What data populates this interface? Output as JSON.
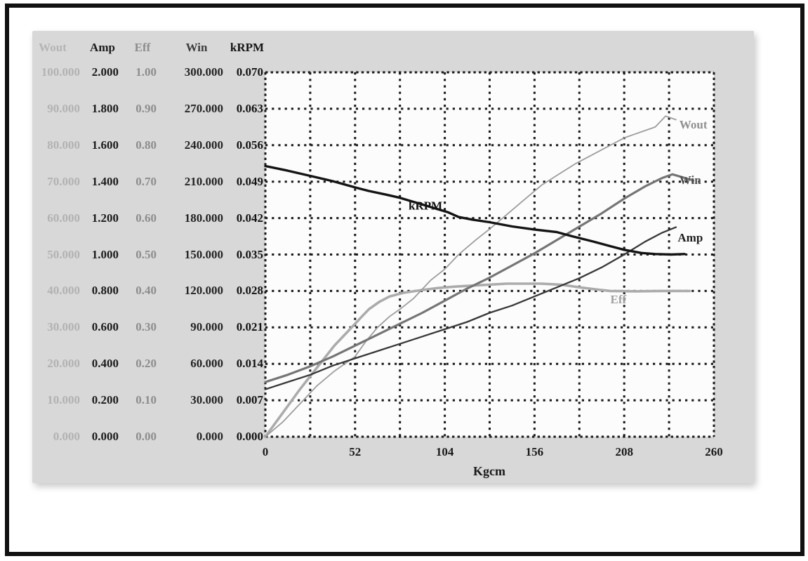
{
  "window": {
    "frame_border_color": "#111111",
    "panel_color": "#d8d8d8",
    "plot_background": "#fcfcfc"
  },
  "scale_table": {
    "columns": [
      {
        "header": "Wout",
        "header_color": "#b5b5b5",
        "text_color": "#b2b2b2",
        "values": [
          "100.000",
          "90.000",
          "80.000",
          "70.000",
          "60.000",
          "50.000",
          "40.000",
          "30.000",
          "20.000",
          "10.000",
          "0.000"
        ]
      },
      {
        "header": "Amp",
        "header_color": "#1c1c1c",
        "text_color": "#1c1c1c",
        "values": [
          "2.000",
          "1.800",
          "1.600",
          "1.400",
          "1.200",
          "1.000",
          "0.800",
          "0.600",
          "0.400",
          "0.200",
          "0.000"
        ]
      },
      {
        "header": "Eff",
        "header_color": "#8d8d8d",
        "text_color": "#8d8d8d",
        "values": [
          "1.00",
          "0.90",
          "0.80",
          "0.70",
          "0.60",
          "0.50",
          "0.40",
          "0.30",
          "0.20",
          "0.10",
          "0.00"
        ]
      },
      {
        "header": "Win",
        "header_color": "#3c3c3c",
        "text_color": "#242424",
        "values": [
          "300.000",
          "270.000",
          "240.000",
          "210.000",
          "180.000",
          "150.000",
          "120.000",
          "90.000",
          "60.000",
          "30.000",
          "0.000"
        ]
      },
      {
        "header": "kRPM",
        "header_color": "#141414",
        "text_color": "#141414",
        "values": [
          "0.070",
          "0.063",
          "0.056",
          "0.049",
          "0.042",
          "0.035",
          "0.028",
          "0.021",
          "0.014",
          "0.007",
          "0.000"
        ]
      }
    ]
  },
  "chart_data": {
    "type": "line",
    "title": "",
    "xlabel": "Kgcm",
    "xlim": [
      0,
      260
    ],
    "x_ticks": [
      "0",
      "52",
      "104",
      "156",
      "208",
      "260"
    ],
    "x_tick_values": [
      0,
      52,
      104,
      156,
      208,
      260
    ],
    "grid": {
      "style": "dotted",
      "color": "#191919",
      "x_divisions": 10,
      "y_divisions": 10
    },
    "legend_position": "inline-labels",
    "axes": [
      {
        "name": "Wout",
        "min": 0,
        "max": 100,
        "step": 10
      },
      {
        "name": "Amp",
        "min": 0,
        "max": 2,
        "step": 0.2
      },
      {
        "name": "Eff",
        "min": 0,
        "max": 1,
        "step": 0.1
      },
      {
        "name": "Win",
        "min": 0,
        "max": 300,
        "step": 30
      },
      {
        "name": "kRPM",
        "min": 0,
        "max": 0.07,
        "step": 0.007
      }
    ],
    "series": [
      {
        "name": "Eff",
        "color": "#ababab",
        "width": 3.6,
        "ymax": 1,
        "label": {
          "x": 200,
          "y": 0.366,
          "color": "#a0a0a0"
        },
        "points": [
          [
            0,
            0
          ],
          [
            10,
            0.065
          ],
          [
            20,
            0.13
          ],
          [
            30,
            0.19
          ],
          [
            40,
            0.25
          ],
          [
            48,
            0.29
          ],
          [
            56,
            0.33
          ],
          [
            60,
            0.35
          ],
          [
            66,
            0.37
          ],
          [
            72,
            0.385
          ],
          [
            80,
            0.395
          ],
          [
            90,
            0.402
          ],
          [
            100,
            0.408
          ],
          [
            110,
            0.412
          ],
          [
            125,
            0.416
          ],
          [
            140,
            0.42
          ],
          [
            160,
            0.42
          ],
          [
            172,
            0.417
          ],
          [
            182,
            0.41
          ],
          [
            192,
            0.404
          ],
          [
            200,
            0.4
          ],
          [
            215,
            0.399
          ],
          [
            230,
            0.4
          ],
          [
            246,
            0.4
          ]
        ]
      },
      {
        "name": "Wout",
        "color": "#9d9d9d",
        "width": 1.8,
        "ymax": 100,
        "label": {
          "x": 240,
          "y": 84.6,
          "color": "#909090"
        },
        "points": [
          [
            0,
            0
          ],
          [
            10,
            4
          ],
          [
            20,
            9
          ],
          [
            30,
            14
          ],
          [
            40,
            18
          ],
          [
            52,
            22
          ],
          [
            58,
            26
          ],
          [
            65,
            30
          ],
          [
            72,
            33
          ],
          [
            78,
            35
          ],
          [
            86,
            38
          ],
          [
            96,
            43
          ],
          [
            104,
            46
          ],
          [
            112,
            50
          ],
          [
            122,
            54
          ],
          [
            130,
            57
          ],
          [
            140,
            61
          ],
          [
            150,
            65
          ],
          [
            160,
            69
          ],
          [
            170,
            72
          ],
          [
            180,
            75
          ],
          [
            192,
            78
          ],
          [
            200,
            80
          ],
          [
            208,
            82
          ],
          [
            214,
            83
          ],
          [
            220,
            84
          ],
          [
            226,
            85
          ],
          [
            232,
            88
          ],
          [
            238,
            87
          ]
        ]
      },
      {
        "name": "Win",
        "color": "#757575",
        "width": 3.2,
        "ymax": 300,
        "label": {
          "x": 240,
          "y": 208,
          "color": "#505050"
        },
        "points": [
          [
            0,
            45
          ],
          [
            13,
            51
          ],
          [
            26,
            58
          ],
          [
            39,
            66
          ],
          [
            52,
            75
          ],
          [
            65,
            84
          ],
          [
            78,
            93
          ],
          [
            91,
            102
          ],
          [
            104,
            112
          ],
          [
            117,
            122
          ],
          [
            130,
            131
          ],
          [
            143,
            141
          ],
          [
            156,
            151
          ],
          [
            169,
            162
          ],
          [
            182,
            173
          ],
          [
            195,
            184
          ],
          [
            208,
            196
          ],
          [
            220,
            206
          ],
          [
            230,
            213
          ],
          [
            236,
            216
          ],
          [
            248,
            211
          ]
        ]
      },
      {
        "name": "Amp",
        "color": "#383838",
        "width": 2.3,
        "ymax": 2,
        "label": {
          "x": 239,
          "y": 1.071,
          "color": "#1d1d1d"
        },
        "points": [
          [
            0,
            0.26
          ],
          [
            13,
            0.3
          ],
          [
            26,
            0.34
          ],
          [
            39,
            0.39
          ],
          [
            52,
            0.43
          ],
          [
            65,
            0.47
          ],
          [
            78,
            0.51
          ],
          [
            91,
            0.55
          ],
          [
            104,
            0.59
          ],
          [
            117,
            0.63
          ],
          [
            130,
            0.68
          ],
          [
            143,
            0.72
          ],
          [
            156,
            0.77
          ],
          [
            169,
            0.82
          ],
          [
            182,
            0.87
          ],
          [
            195,
            0.93
          ],
          [
            208,
            1.0
          ],
          [
            220,
            1.07
          ],
          [
            230,
            1.12
          ],
          [
            238,
            1.15
          ]
        ]
      },
      {
        "name": "kRPM",
        "color": "#141414",
        "width": 3.4,
        "ymax": 0.07,
        "label": {
          "x": 83,
          "y": 0.0436,
          "color": "#121212"
        },
        "points": [
          [
            0,
            0.052
          ],
          [
            13,
            0.0511
          ],
          [
            26,
            0.0501
          ],
          [
            39,
            0.0491
          ],
          [
            52,
            0.0479
          ],
          [
            60,
            0.0472
          ],
          [
            70,
            0.0465
          ],
          [
            78,
            0.0459
          ],
          [
            91,
            0.0446
          ],
          [
            100,
            0.0437
          ],
          [
            106,
            0.0431
          ],
          [
            112,
            0.0422
          ],
          [
            120,
            0.0417
          ],
          [
            130,
            0.0412
          ],
          [
            143,
            0.0404
          ],
          [
            156,
            0.0398
          ],
          [
            169,
            0.0393
          ],
          [
            178,
            0.0385
          ],
          [
            190,
            0.0375
          ],
          [
            200,
            0.0366
          ],
          [
            208,
            0.0359
          ],
          [
            218,
            0.0353
          ],
          [
            226,
            0.0351
          ],
          [
            235,
            0.035
          ],
          [
            243,
            0.0351
          ]
        ]
      }
    ]
  }
}
